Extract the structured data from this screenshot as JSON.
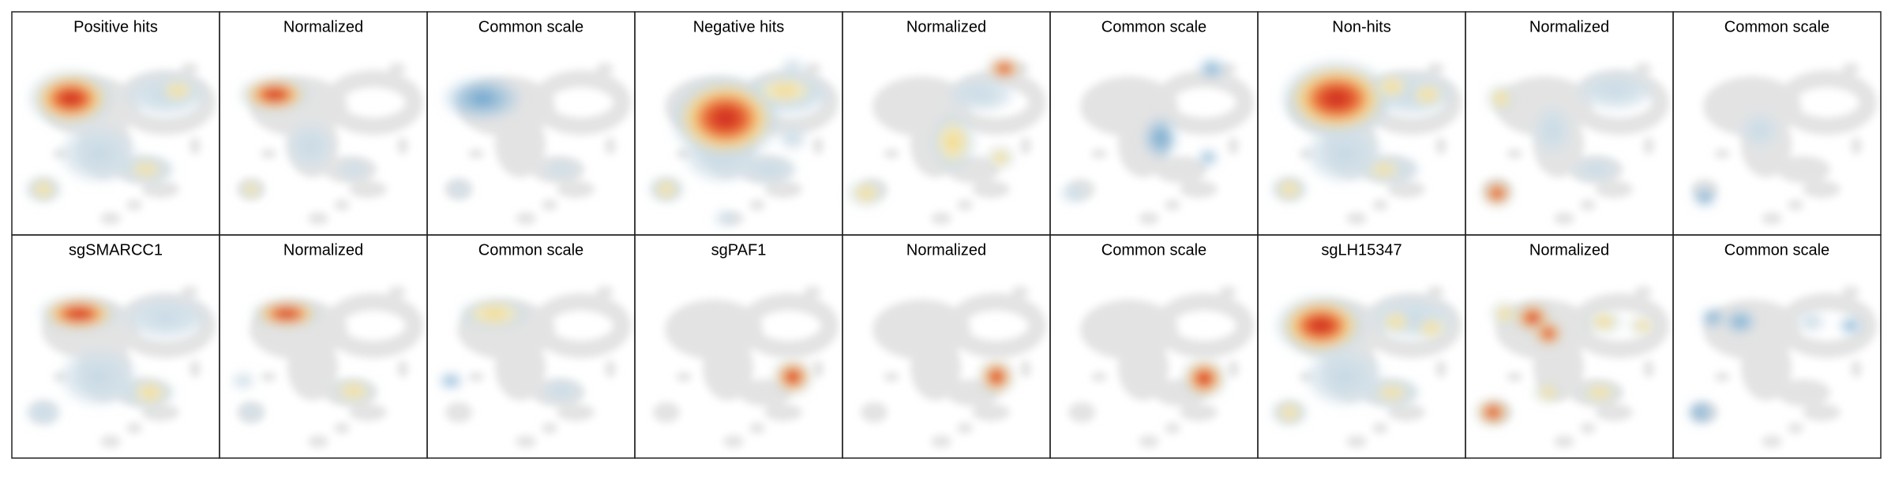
{
  "panels": {
    "rows": [
      [
        "Positive hits",
        "Normalized",
        "Common scale",
        "Negative hits",
        "Normalized",
        "Common scale",
        "Non-hits",
        "Normalized",
        "Common scale"
      ],
      [
        "sgSMARCC1",
        "Normalized",
        "Common scale",
        "sgPAF1",
        "Normalized",
        "Common scale",
        "sgLH15347",
        "Normalized",
        "Common scale"
      ]
    ]
  }
}
